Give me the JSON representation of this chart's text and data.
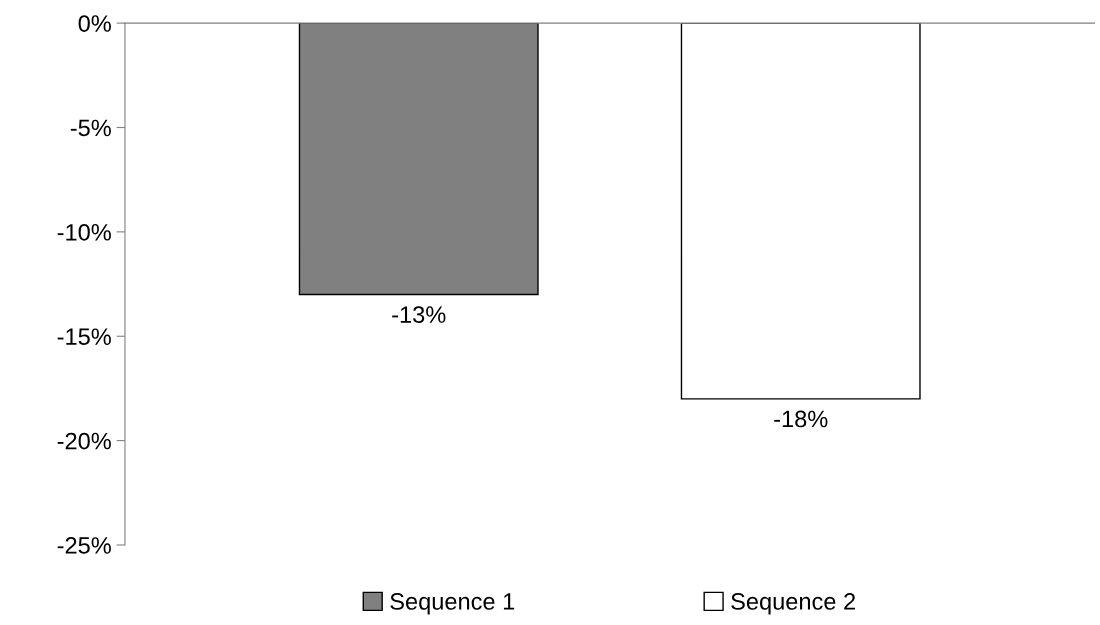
{
  "chart_data": {
    "type": "bar",
    "categories": [
      null
    ],
    "series": [
      {
        "name": "Sequence 1",
        "color": "#808080",
        "values": [
          -13
        ],
        "value_labels": [
          "-13%"
        ]
      },
      {
        "name": "Sequence 2",
        "color": "#ffffff",
        "values": [
          -18
        ],
        "value_labels": [
          "-18%"
        ]
      }
    ],
    "ylim": [
      -25,
      0
    ],
    "yticks": [
      {
        "value": 0,
        "label": "0%"
      },
      {
        "value": -5,
        "label": "-5%"
      },
      {
        "value": -10,
        "label": "-10%"
      },
      {
        "value": -15,
        "label": "-15%"
      },
      {
        "value": -20,
        "label": "-20%"
      },
      {
        "value": -25,
        "label": "-25%"
      }
    ],
    "grid": false,
    "legend": "bottom"
  }
}
